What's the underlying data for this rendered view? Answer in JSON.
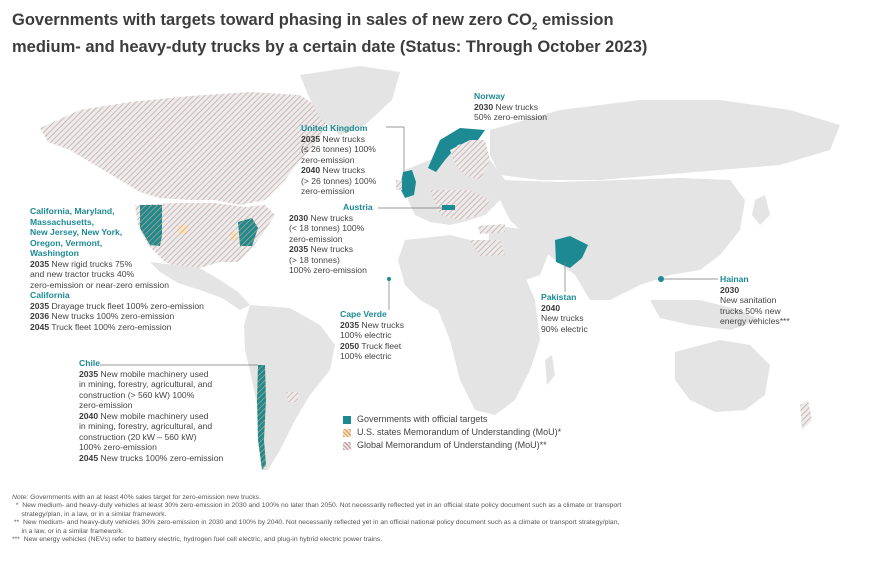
{
  "title": {
    "line1_pre": "Governments with targets toward phasing in sales of new zero CO",
    "sub": "2",
    "line1_post": " emission",
    "line2": "medium- and heavy-duty trucks by a certain date (Status: Through October 2023)"
  },
  "colors": {
    "official": "#1d8a93",
    "us_mou": "#e8a86a",
    "global_mou": "#c9a8a8",
    "land": "#e4e4e4",
    "heading": "#1d8a93"
  },
  "labels": {
    "uk": {
      "name": "United Kingdom",
      "l1y": "2035",
      "l1": " New trucks",
      "l2": "(≤ 26 tonnes) 100%",
      "l3": "zero-emission",
      "l4y": "2040",
      "l4": " New trucks",
      "l5": "(> 26 tonnes) 100%",
      "l6": "zero-emission"
    },
    "norway": {
      "name": "Norway",
      "l1y": "2030",
      "l1": " New trucks",
      "l2": "50% zero-emission"
    },
    "austria": {
      "name": "Austria",
      "l1y": "2030",
      "l1": " New trucks",
      "l2": "(< 18 tonnes) 100%",
      "l3": "zero-emission",
      "l4y": "2035",
      "l4": " New trucks",
      "l5": "(> 18 tonnes)",
      "l6": "100% zero-emission"
    },
    "usstates": {
      "name1": "California, Maryland,",
      "name2": "Massachusetts,",
      "name3": "New Jersey, New York,",
      "name4": "Oregon, Vermont,",
      "name5": "Washington",
      "l1y": "2035",
      "l1": " New rigid trucks 75%",
      "l2": "and new tractor trucks 40%",
      "l3": "zero-emission or near-zero emission",
      "name6": "California",
      "l4y": "2035",
      "l4": " Drayage truck fleet 100% zero-emission",
      "l5y": "2036",
      "l5": " New trucks 100% zero-emission",
      "l6y": "2045",
      "l6": " Truck fleet 100% zero-emission"
    },
    "capeverde": {
      "name": "Cape Verde",
      "l1y": "2035",
      "l1": " New trucks",
      "l2": "100% electric",
      "l3y": "2050",
      "l3": " Truck fleet",
      "l4": "100% electric"
    },
    "pakistan": {
      "name": "Pakistan",
      "l1y": "2040",
      "l2": "New trucks",
      "l3": "90% electric"
    },
    "hainan": {
      "name": "Hainan",
      "l1y": "2030",
      "l2": "New sanitation",
      "l3": "trucks 50% new",
      "l4": "energy vehicles***"
    },
    "chile": {
      "name": "Chile",
      "l1y": "2035",
      "l1": " New mobile machinery used",
      "l2": "in mining, forestry, agricultural, and",
      "l3": "construction (> 560 kW) 100%",
      "l4": "zero-emission",
      "l5y": "2040",
      "l5": " New mobile machinery used",
      "l6": "in mining, forestry, agricultural, and",
      "l7": "construction (20 kW – 560 kW)",
      "l8": "100% zero-emission",
      "l9y": "2045",
      "l9": " New trucks 100% zero-emission"
    }
  },
  "legend": {
    "official": "Governments with official targets",
    "us_mou": "U.S. states Memorandum of Understanding (MoU)*",
    "global_mou": "Global Memorandum of Understanding (MoU)**"
  },
  "notes": {
    "n0_label": "Note:",
    "n0": " Governments with an at least 40% sales target for zero-emission new trucks.",
    "n1a": "  *  New medium- and heavy-duty vehicles at least 30% zero-emission in 2030 and 100% no later than 2050. Not necessarily reflected yet in an official state policy document such as a climate or transport",
    "n1b": "     strategy/plan, in a law, or in a similar framework.",
    "n2a": " **  New medium- and heavy-duty vehicles 30% zero-emission in 2030 and 100% by 2040. Not necessarily reflected yet in an official national policy document such as a climate or transport strategy/plan,",
    "n2b": "     in a law, or in a similar framework.",
    "n3": "***  New energy vehicles (NEVs) refer to battery electric, hydrogen fuel cell electric, and plug-in hybrid electric power trains."
  }
}
